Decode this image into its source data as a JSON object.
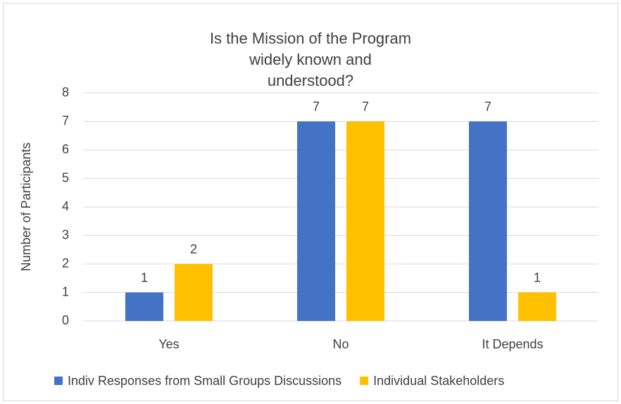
{
  "chart_data": {
    "type": "bar",
    "title": "Is the Mission of the Program widely known and understood?",
    "y_label": "Number of Participants",
    "categories": [
      "Yes",
      "No",
      "It Depends"
    ],
    "series": [
      {
        "name": "Indiv Responses from Small Groups Discussions",
        "color": "#4472c4",
        "values": [
          1,
          7,
          7
        ]
      },
      {
        "name": "Individual Stakeholders",
        "color": "#ffc000",
        "values": [
          2,
          7,
          1
        ]
      }
    ],
    "ylim": [
      0,
      8
    ],
    "yticks": [
      0,
      1,
      2,
      3,
      4,
      5,
      6,
      7,
      8
    ],
    "grid": true,
    "legend": "bottom"
  }
}
